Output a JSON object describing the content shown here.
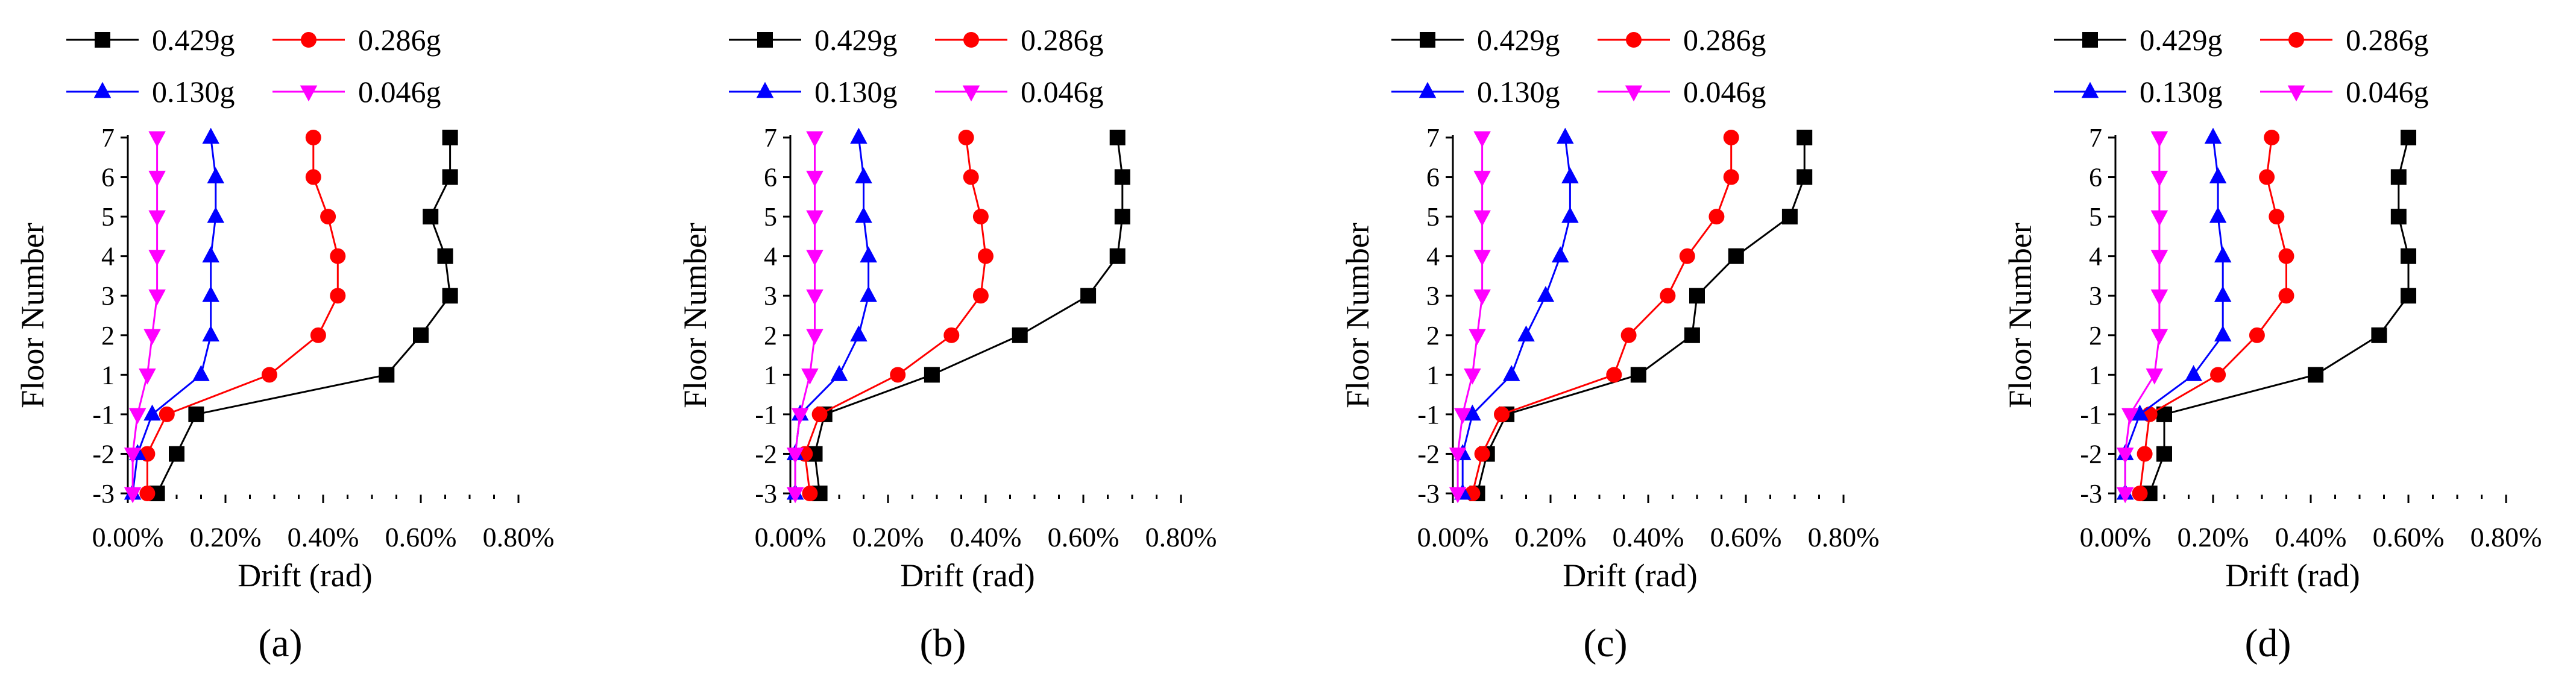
{
  "chart_data": [
    {
      "type": "line",
      "panel_label": "(a)",
      "xlabel": "Drift (rad)",
      "ylabel": "Floor Number",
      "xlim": [
        0,
        0.8
      ],
      "ylim": [
        -3,
        7
      ],
      "x_ticks": [
        "0.00%",
        "0.20%",
        "0.40%",
        "0.60%",
        "0.80%"
      ],
      "y_ticks": [
        "-3",
        "-2",
        "-1",
        "1",
        "2",
        "3",
        "4",
        "5",
        "6",
        "7"
      ],
      "floors": [
        "7",
        "6",
        "5",
        "4",
        "3",
        "2",
        "1",
        "-1",
        "-2",
        "-3"
      ],
      "legend": [
        "0.429g",
        "0.286g",
        "0.130g",
        "0.046g"
      ],
      "series": [
        {
          "name": "0.429g",
          "marker": "square",
          "color": "#000000",
          "values": [
            0.66,
            0.66,
            0.62,
            0.65,
            0.66,
            0.6,
            0.53,
            0.14,
            0.1,
            0.06
          ]
        },
        {
          "name": "0.286g",
          "marker": "circle",
          "color": "#ff0000",
          "values": [
            0.38,
            0.38,
            0.41,
            0.43,
            0.43,
            0.39,
            0.29,
            0.08,
            0.04,
            0.04
          ]
        },
        {
          "name": "0.130g",
          "marker": "triangle-up",
          "color": "#0000ff",
          "values": [
            0.17,
            0.18,
            0.18,
            0.17,
            0.17,
            0.17,
            0.15,
            0.05,
            0.02,
            0.01
          ]
        },
        {
          "name": "0.046g",
          "marker": "triangle-down",
          "color": "#ff00ff",
          "values": [
            0.06,
            0.06,
            0.06,
            0.06,
            0.06,
            0.05,
            0.04,
            0.02,
            0.01,
            0.01
          ]
        }
      ]
    },
    {
      "type": "line",
      "panel_label": "(b)",
      "xlabel": "Drift (rad)",
      "ylabel": "Floor Number",
      "xlim": [
        0,
        0.8
      ],
      "ylim": [
        -3,
        7
      ],
      "x_ticks": [
        "0.00%",
        "0.20%",
        "0.40%",
        "0.60%",
        "0.80%"
      ],
      "y_ticks": [
        "-3",
        "-2",
        "-1",
        "1",
        "2",
        "3",
        "4",
        "5",
        "6",
        "7"
      ],
      "floors": [
        "7",
        "6",
        "5",
        "4",
        "3",
        "2",
        "1",
        "-1",
        "-2",
        "-3"
      ],
      "legend": [
        "0.429g",
        "0.286g",
        "0.130g",
        "0.046g"
      ],
      "series": [
        {
          "name": "0.429g",
          "marker": "square",
          "color": "#000000",
          "values": [
            0.67,
            0.68,
            0.68,
            0.67,
            0.61,
            0.47,
            0.29,
            0.07,
            0.05,
            0.06
          ]
        },
        {
          "name": "0.286g",
          "marker": "circle",
          "color": "#ff0000",
          "values": [
            0.36,
            0.37,
            0.39,
            0.4,
            0.39,
            0.33,
            0.22,
            0.06,
            0.03,
            0.04
          ]
        },
        {
          "name": "0.130g",
          "marker": "triangle-up",
          "color": "#0000ff",
          "values": [
            0.14,
            0.15,
            0.15,
            0.16,
            0.16,
            0.14,
            0.1,
            0.02,
            0.01,
            0.01
          ]
        },
        {
          "name": "0.046g",
          "marker": "triangle-down",
          "color": "#ff00ff",
          "values": [
            0.05,
            0.05,
            0.05,
            0.05,
            0.05,
            0.05,
            0.04,
            0.02,
            0.01,
            0.01
          ]
        }
      ]
    },
    {
      "type": "line",
      "panel_label": "(c)",
      "xlabel": "Drift (rad)",
      "ylabel": "Floor Number",
      "xlim": [
        0,
        0.8
      ],
      "ylim": [
        -3,
        7
      ],
      "x_ticks": [
        "0.00%",
        "0.20%",
        "0.40%",
        "0.60%",
        "0.80%"
      ],
      "y_ticks": [
        "-3",
        "-2",
        "-1",
        "1",
        "2",
        "3",
        "4",
        "5",
        "6",
        "7"
      ],
      "floors": [
        "7",
        "6",
        "5",
        "4",
        "3",
        "2",
        "1",
        "-1",
        "-2",
        "-3"
      ],
      "legend": [
        "0.429g",
        "0.286g",
        "0.130g",
        "0.046g"
      ],
      "series": [
        {
          "name": "0.429g",
          "marker": "square",
          "color": "#000000",
          "values": [
            0.72,
            0.72,
            0.69,
            0.58,
            0.5,
            0.49,
            0.38,
            0.11,
            0.07,
            0.05
          ]
        },
        {
          "name": "0.286g",
          "marker": "circle",
          "color": "#ff0000",
          "values": [
            0.57,
            0.57,
            0.54,
            0.48,
            0.44,
            0.36,
            0.33,
            0.1,
            0.06,
            0.04
          ]
        },
        {
          "name": "0.130g",
          "marker": "triangle-up",
          "color": "#0000ff",
          "values": [
            0.23,
            0.24,
            0.24,
            0.22,
            0.19,
            0.15,
            0.12,
            0.04,
            0.02,
            0.02
          ]
        },
        {
          "name": "0.046g",
          "marker": "triangle-down",
          "color": "#ff00ff",
          "values": [
            0.06,
            0.06,
            0.06,
            0.06,
            0.06,
            0.05,
            0.04,
            0.02,
            0.01,
            0.01
          ]
        }
      ]
    },
    {
      "type": "line",
      "panel_label": "(d)",
      "xlabel": "Drift (rad)",
      "ylabel": "Floor Number",
      "xlim": [
        0,
        0.8
      ],
      "ylim": [
        -3,
        7
      ],
      "x_ticks": [
        "0.00%",
        "0.20%",
        "0.40%",
        "0.60%",
        "0.80%"
      ],
      "y_ticks": [
        "-3",
        "-2",
        "-1",
        "1",
        "2",
        "3",
        "4",
        "5",
        "6",
        "7"
      ],
      "floors": [
        "7",
        "6",
        "5",
        "4",
        "3",
        "2",
        "1",
        "-1",
        "-2",
        "-3"
      ],
      "legend": [
        "0.429g",
        "0.286g",
        "0.130g",
        "0.046g"
      ],
      "series": [
        {
          "name": "0.429g",
          "marker": "square",
          "color": "#000000",
          "values": [
            0.6,
            0.58,
            0.58,
            0.6,
            0.6,
            0.54,
            0.41,
            0.1,
            0.1,
            0.07
          ]
        },
        {
          "name": "0.286g",
          "marker": "circle",
          "color": "#ff0000",
          "values": [
            0.32,
            0.31,
            0.33,
            0.35,
            0.35,
            0.29,
            0.21,
            0.07,
            0.06,
            0.05
          ]
        },
        {
          "name": "0.130g",
          "marker": "triangle-up",
          "color": "#0000ff",
          "values": [
            0.2,
            0.21,
            0.21,
            0.22,
            0.22,
            0.22,
            0.16,
            0.05,
            0.02,
            0.02
          ]
        },
        {
          "name": "0.046g",
          "marker": "triangle-down",
          "color": "#ff00ff",
          "values": [
            0.09,
            0.09,
            0.09,
            0.09,
            0.09,
            0.09,
            0.08,
            0.03,
            0.02,
            0.02
          ]
        }
      ]
    }
  ]
}
